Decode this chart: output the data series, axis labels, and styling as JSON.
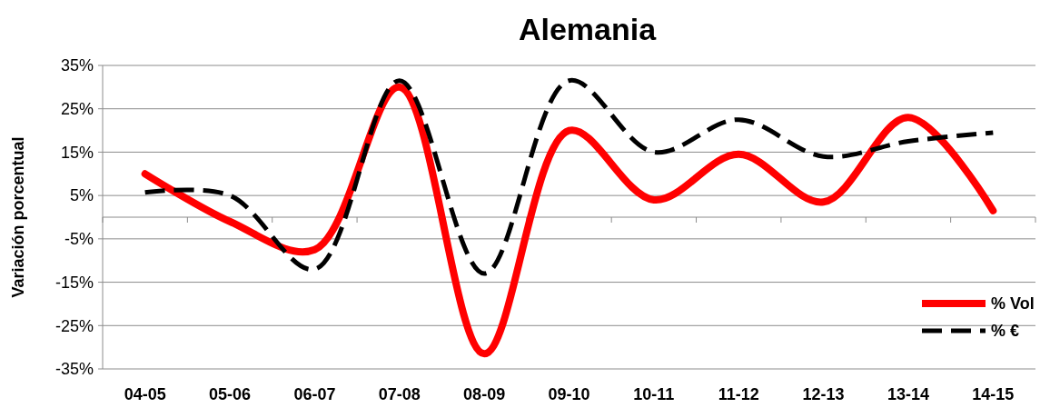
{
  "chart_data": {
    "type": "line",
    "title": "Alemania",
    "ylabel": "Variación porcentual",
    "categories": [
      "04-05",
      "05-06",
      "06-07",
      "07-08",
      "08-09",
      "09-10",
      "10-11",
      "11-12",
      "12-13",
      "13-14",
      "14-15"
    ],
    "series": [
      {
        "name": "% Vol",
        "color": "#ff0000",
        "line_style": "solid",
        "values": [
          10,
          -1,
          -7.5,
          30,
          -31.5,
          20,
          4,
          14.5,
          3.5,
          23,
          1.5
        ]
      },
      {
        "name": "% €",
        "color": "#000000",
        "line_style": "dashed",
        "values": [
          5.7,
          5,
          -12,
          31.5,
          -13,
          31.5,
          15,
          22.5,
          14,
          17.5,
          19.5
        ]
      }
    ],
    "ylim": [
      -35,
      35
    ],
    "yticks": [
      {
        "value": -35,
        "label": "-35%"
      },
      {
        "value": -25,
        "label": "-25%"
      },
      {
        "value": -15,
        "label": "-15%"
      },
      {
        "value": -5,
        "label": "-5%"
      },
      {
        "value": 5,
        "label": "5%"
      },
      {
        "value": 15,
        "label": "15%"
      },
      {
        "value": 25,
        "label": "25%"
      },
      {
        "value": 35,
        "label": "35%"
      }
    ],
    "grid": "y",
    "legend": "bottom right",
    "marker": "none"
  }
}
